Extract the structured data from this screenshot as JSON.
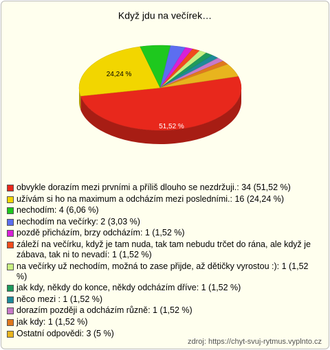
{
  "chart_data": {
    "type": "pie",
    "title": "Když jdu na večírek…",
    "categories": [
      "obvykle dorazím mezi prvními a příliš dlouho se nezdržuji.: 34 (51,52 %)",
      "užívám si ho na maximum a odcházím mezi posledními.: 16 (24,24 %)",
      "nechodím: 4 (6,06 %)",
      "nechodím na večírky: 2 (3,03 %)",
      "pozdě přicházím, brzy odcházím: 1 (1,52 %)",
      "záleží na večírku, když je tam nuda, tak tam nebudu trčet do rána, ale když je zábava, tak ni to nevadí: 1 (1,52 %)",
      "na večírky už nechodím, možná to zase přijde, až dětičky vyrostou :): 1 (1,52 %)",
      "jak kdy, někdy do konce, někdy odcházím dříve: 1 (1,52 %)",
      "něco mezi : 1 (1,52 %)",
      "dorazím později a odcházím různě: 1 (1,52 %)",
      "jak kdy: 1 (1,52 %)",
      "Ostatní odpovědi: 3 (5 %)"
    ],
    "values": [
      51.52,
      24.24,
      6.06,
      3.03,
      1.52,
      1.52,
      1.52,
      1.52,
      1.52,
      1.52,
      1.52,
      5
    ],
    "value_labels": [
      "51,52 %",
      "24,24 %",
      null,
      null,
      null,
      null,
      null,
      null,
      null,
      null,
      null,
      null
    ],
    "colors": [
      "#e8281c",
      "#f2d600",
      "#1ec81e",
      "#5c6ef0",
      "#d820d8",
      "#f04c1c",
      "#c8f082",
      "#1e9a5c",
      "#1e8a9a",
      "#c87ac8",
      "#e0781e",
      "#e8b41e"
    ],
    "source": "zdroj: https://chyt-svuj-rytmus.vyplnto.cz"
  }
}
